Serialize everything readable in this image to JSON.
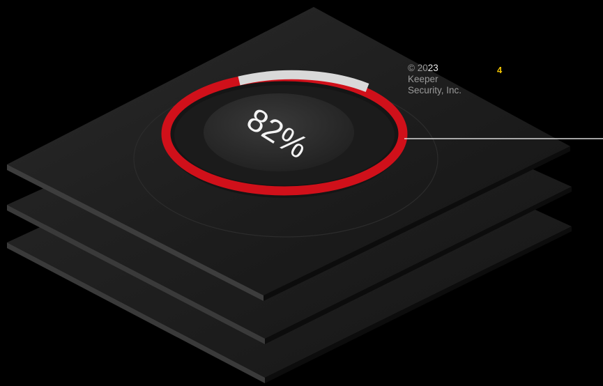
{
  "gauge": {
    "percent_label": "82%",
    "value_percent": 82
  },
  "footer": {
    "copyright_prefix": "© 20",
    "copyright_year_suffix": "23",
    "company_line1": "Keeper",
    "company_line2": "Security, Inc.",
    "page_number": "4"
  },
  "colors": {
    "background": "#000000",
    "layer": "#1f1f1f",
    "accent_red": "#d0101a",
    "ring_gray": "#d9d9d9",
    "page_number": "#f2c400"
  }
}
